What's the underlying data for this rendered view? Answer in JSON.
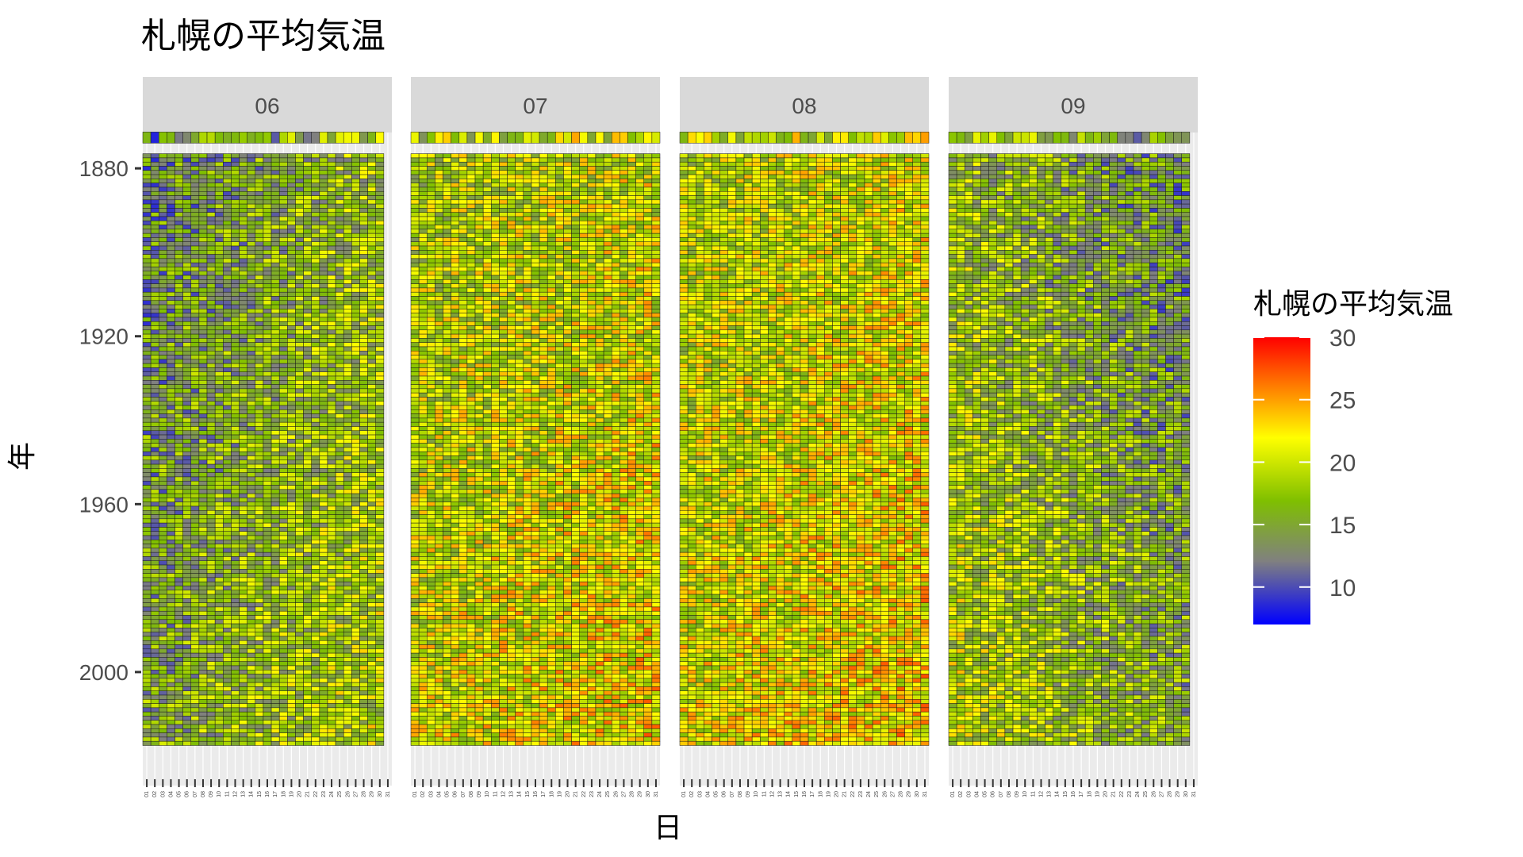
{
  "chart_data": {
    "type": "heatmap",
    "title": "札幌の平均気温",
    "xlabel": "日",
    "ylabel": "年",
    "facet_labels": [
      "06",
      "07",
      "08",
      "09"
    ],
    "x_tick_labels": [
      "01",
      "02",
      "03",
      "04",
      "05",
      "06",
      "07",
      "08",
      "09",
      "10",
      "11",
      "12",
      "13",
      "14",
      "15",
      "16",
      "17",
      "18",
      "19",
      "20",
      "21",
      "22",
      "23",
      "24",
      "25",
      "26",
      "27",
      "28",
      "29",
      "30",
      "31"
    ],
    "y_tick_labels": [
      "1880",
      "1920",
      "1960",
      "2000"
    ],
    "y_axis_range": [
      1876,
      2021
    ],
    "years_range": [
      1876,
      2017
    ],
    "legend": {
      "title": "札幌の平均気温",
      "ticks": [
        "30",
        "25",
        "20",
        "15",
        "10"
      ],
      "range": [
        7,
        30
      ],
      "colors": [
        "#0000ff",
        "#808080",
        "#7fbf00",
        "#ffff00",
        "#ff0000"
      ],
      "placement": "right"
    },
    "value_ranges_by_month": {
      "06": {
        "min": 7,
        "max": 26
      },
      "07": {
        "min": 11,
        "max": 30
      },
      "08": {
        "min": 12,
        "max": 30
      },
      "09": {
        "min": 7,
        "max": 26
      }
    },
    "grid": true,
    "background": "#ebebeb",
    "strip_fill": "#d9d9d9"
  }
}
